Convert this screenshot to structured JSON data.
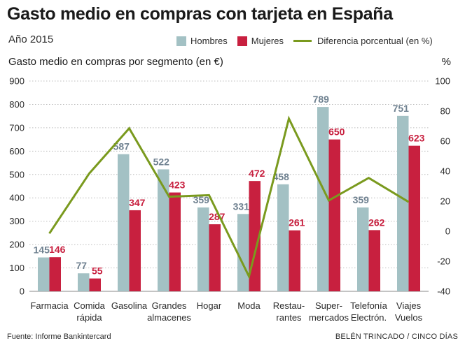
{
  "header": {
    "title": "Gasto medio en compras con tarjeta en España",
    "subtitle": "Año 2015"
  },
  "legend": {
    "men": "Hombres",
    "women": "Mujeres",
    "diff": "Diferencia porcentual (en %)"
  },
  "footer": {
    "source": "Fuente: Informe Bankintercard",
    "credit": "BELÉN TRINCADO / CINCO DÍAS"
  },
  "colors": {
    "men": "#a3c1c4",
    "women": "#c8203f",
    "line": "#7a9a1e",
    "grid": "#bdbdbd",
    "men_label": "#6f8190",
    "women_label": "#c8203f"
  },
  "chart_data": {
    "type": "bar",
    "title": "Gasto medio en compras por segmento (en €)",
    "y2label": "%",
    "categories": [
      [
        "Farmacia"
      ],
      [
        "Comida",
        "rápida"
      ],
      [
        "Gasolina"
      ],
      [
        "Grandes",
        "almacenes"
      ],
      [
        "Hogar"
      ],
      [
        "Moda"
      ],
      [
        "Restau-",
        "rantes"
      ],
      [
        "Super-",
        "mercados"
      ],
      [
        "Telefonía",
        "Electrón."
      ],
      [
        "Viajes",
        "Vuelos"
      ]
    ],
    "series": [
      {
        "name": "Hombres",
        "axis": "left",
        "values": [
          145,
          77,
          587,
          522,
          359,
          331,
          458,
          789,
          359,
          751
        ]
      },
      {
        "name": "Mujeres",
        "axis": "left",
        "values": [
          146,
          55,
          347,
          423,
          287,
          472,
          261,
          650,
          262,
          623
        ]
      },
      {
        "name": "Diferencia porcentual (en %)",
        "axis": "right",
        "type": "line",
        "values": [
          -1.5,
          38.5,
          68.5,
          23,
          24,
          -30,
          75,
          20.5,
          35.5,
          19.5
        ]
      }
    ],
    "ylim": [
      0,
      900
    ],
    "yticks": [
      0,
      100,
      200,
      300,
      400,
      500,
      600,
      700,
      800,
      900
    ],
    "y2lim": [
      -40,
      100
    ],
    "y2ticks": [
      -40,
      -20,
      0,
      20,
      40,
      60,
      80,
      100
    ]
  }
}
